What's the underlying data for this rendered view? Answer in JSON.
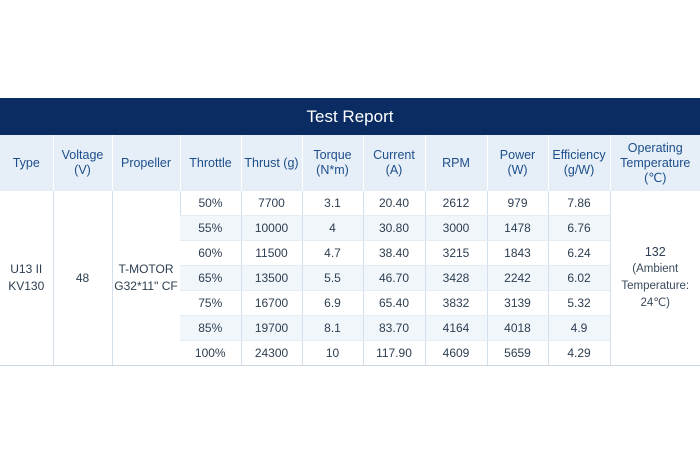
{
  "report": {
    "title": "Test Report",
    "headers": [
      "Type",
      "Voltage (V)",
      "Propeller",
      "Throttle",
      "Thrust (g)",
      "Torque (N*m)",
      "Current (A)",
      "RPM",
      "Power (W)",
      "Efficiency (g/W)",
      "Operating Temperature (℃)"
    ],
    "type": "U13 II KV130",
    "voltage": "48",
    "propeller": "T-MOTOR G32*11\" CF",
    "temperature": {
      "value": "132",
      "note": "(Ambient Temperature: 24℃)"
    },
    "rows": [
      [
        "50%",
        "7700",
        "3.1",
        "20.40",
        "2612",
        "979",
        "7.86"
      ],
      [
        "55%",
        "10000",
        "4",
        "30.80",
        "3000",
        "1478",
        "6.76"
      ],
      [
        "60%",
        "11500",
        "4.7",
        "38.40",
        "3215",
        "1843",
        "6.24"
      ],
      [
        "65%",
        "13500",
        "5.5",
        "46.70",
        "3428",
        "2242",
        "6.02"
      ],
      [
        "75%",
        "16700",
        "6.9",
        "65.40",
        "3832",
        "3139",
        "5.32"
      ],
      [
        "85%",
        "19700",
        "8.1",
        "83.70",
        "4164",
        "4018",
        "4.9"
      ],
      [
        "100%",
        "24300",
        "10",
        "117.90",
        "4609",
        "5659",
        "4.29"
      ]
    ]
  }
}
